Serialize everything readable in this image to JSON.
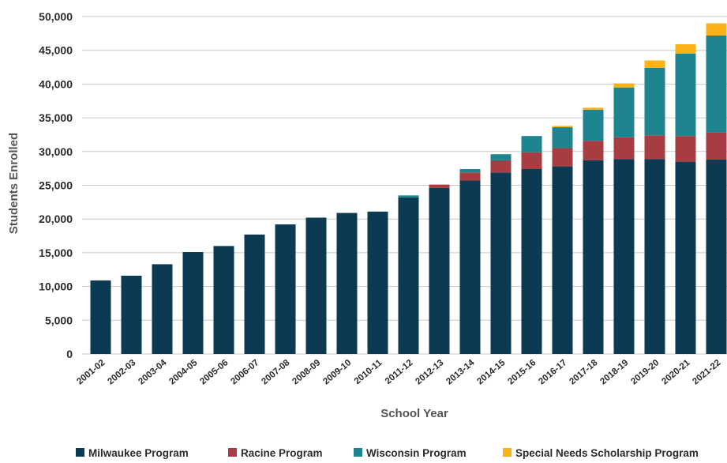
{
  "chart_data": {
    "type": "bar",
    "stacked": true,
    "xlabel": "School Year",
    "ylabel": "Students Enrolled",
    "ylim": [
      0,
      50000
    ],
    "yticks": [
      0,
      5000,
      10000,
      15000,
      20000,
      25000,
      30000,
      35000,
      40000,
      45000,
      50000
    ],
    "ytick_labels": [
      "0",
      "5,000",
      "10,000",
      "15,000",
      "20,000",
      "25,000",
      "30,000",
      "35,000",
      "40,000",
      "45,000",
      "50,000"
    ],
    "grid": true,
    "legend_position": "bottom",
    "categories": [
      "2001-02",
      "2002-03",
      "2003-04",
      "2004-05",
      "2005-06",
      "2006-07",
      "2007-08",
      "2008-09",
      "2009-10",
      "2010-11",
      "2011-12",
      "2012-13",
      "2013-14",
      "2014-15",
      "2015-16",
      "2016-17",
      "2017-18",
      "2018-19",
      "2019-20",
      "2020-21",
      "2021-22"
    ],
    "series": [
      {
        "name": "Milwaukee Program",
        "color": "#0b3a52",
        "values": [
          10900,
          11600,
          13300,
          15100,
          16000,
          17700,
          19200,
          20200,
          20900,
          21100,
          23200,
          24600,
          25700,
          26900,
          27400,
          27800,
          28700,
          28900,
          28900,
          28500,
          28800
        ]
      },
      {
        "name": "Racine Program",
        "color": "#a83c43",
        "values": [
          0,
          0,
          0,
          0,
          0,
          0,
          0,
          0,
          0,
          0,
          0,
          500,
          1200,
          1800,
          2500,
          2700,
          2900,
          3200,
          3500,
          3800,
          4000
        ]
      },
      {
        "name": "Wisconsin Program",
        "color": "#1d8490",
        "values": [
          0,
          0,
          0,
          0,
          0,
          0,
          0,
          0,
          0,
          0,
          300,
          0,
          500,
          900,
          2400,
          3100,
          4600,
          7400,
          10000,
          12200,
          14400
        ]
      },
      {
        "name": "Special Needs Scholarship Program",
        "color": "#f9b316",
        "values": [
          0,
          0,
          0,
          0,
          0,
          0,
          0,
          0,
          0,
          0,
          0,
          0,
          0,
          0,
          0,
          200,
          300,
          600,
          1100,
          1400,
          1800
        ]
      }
    ]
  }
}
